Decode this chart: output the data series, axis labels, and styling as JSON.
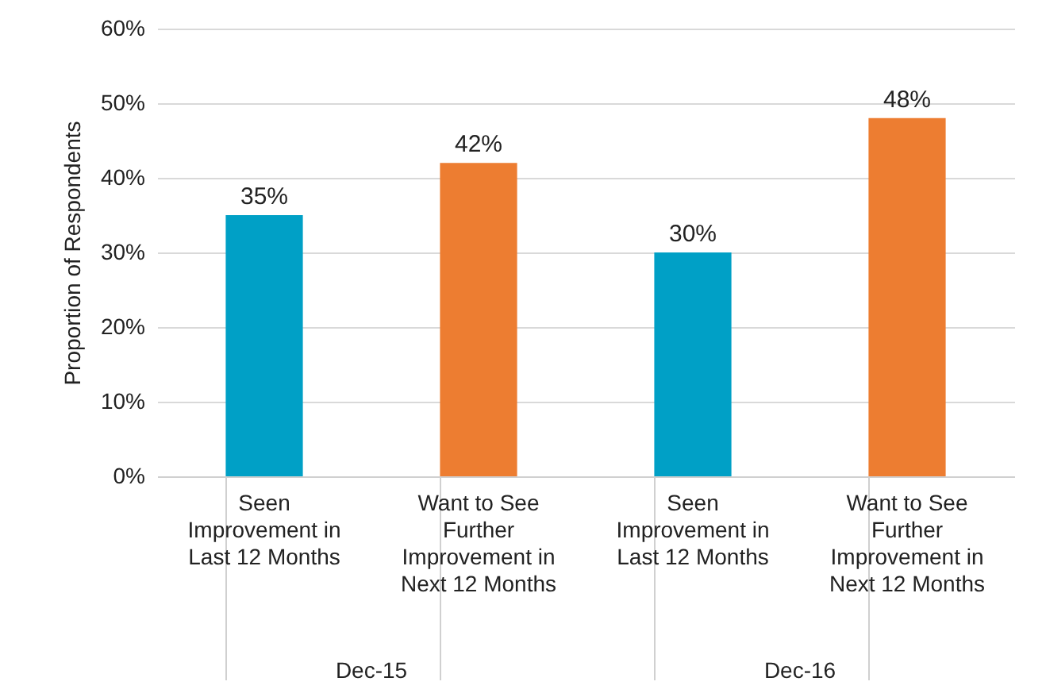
{
  "chart_data": {
    "type": "bar",
    "ylabel": "Proportion of Respondents",
    "categories": [
      "Seen\nImprovement in\nLast 12 Months",
      "Want to See\nFurther\nImprovement in\nNext 12 Months",
      "Seen\nImprovement in\nLast 12 Months",
      "Want to See\nFurther\nImprovement in\nNext 12 Months"
    ],
    "values": [
      35,
      42,
      30,
      48
    ],
    "colors": [
      "#00a0c6",
      "#ed7d31",
      "#00a0c6",
      "#ed7d31"
    ],
    "value_labels": [
      "35%",
      "42%",
      "30%",
      "48%"
    ],
    "ylim": [
      0,
      60
    ],
    "yticks": [
      {
        "value": 0,
        "label": "0%"
      },
      {
        "value": 10,
        "label": "10%"
      },
      {
        "value": 20,
        "label": "20%"
      },
      {
        "value": 30,
        "label": "30%"
      },
      {
        "value": 40,
        "label": "40%"
      },
      {
        "value": 50,
        "label": "50%"
      },
      {
        "value": 60,
        "label": "60%"
      }
    ],
    "annotations": [
      "Dec-15",
      "Dec-16"
    ],
    "grid": "y"
  }
}
